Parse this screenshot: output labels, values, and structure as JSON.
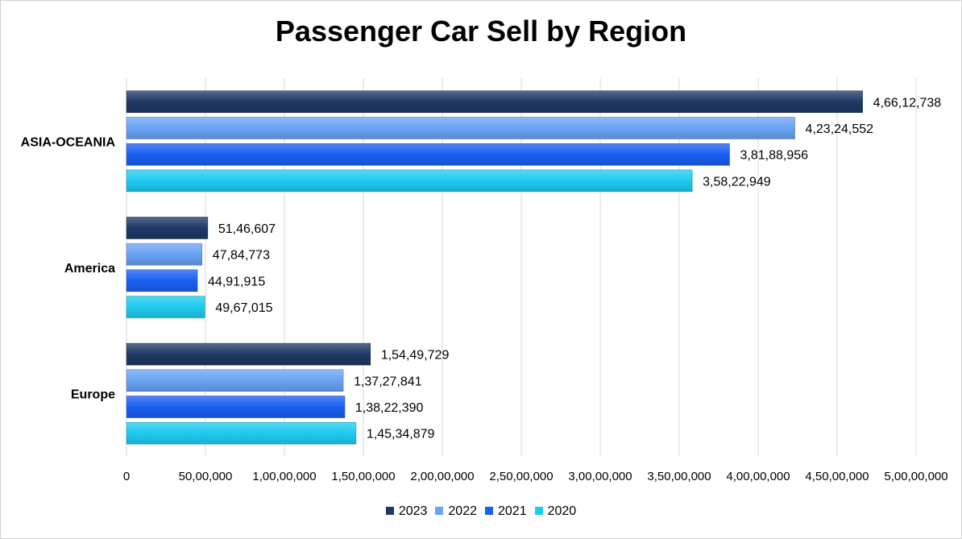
{
  "chart_data": {
    "type": "bar",
    "orientation": "horizontal",
    "title": "Passenger Car Sell by Region",
    "categories": [
      "ASIA-OCEANIA",
      "America",
      "Europe"
    ],
    "series": [
      {
        "name": "2023",
        "color": "#1f3864",
        "values": [
          46612738,
          5146607,
          15449729
        ],
        "labels": [
          "4,66,12,738",
          "51,46,607",
          "1,54,49,729"
        ]
      },
      {
        "name": "2022",
        "color": "#6aa2f5",
        "values": [
          42324552,
          4784773,
          13727841
        ],
        "labels": [
          "4,23,24,552",
          "47,84,773",
          "1,37,27,841"
        ]
      },
      {
        "name": "2021",
        "color": "#1a5ff2",
        "values": [
          38188956,
          4491915,
          13822390
        ],
        "labels": [
          "3,81,88,956",
          "44,91,915",
          "1,38,22,390"
        ]
      },
      {
        "name": "2020",
        "color": "#1ecbf0",
        "values": [
          35822949,
          4967015,
          14534879
        ],
        "labels": [
          "3,58,22,949",
          "49,67,015",
          "1,45,34,879"
        ]
      }
    ],
    "xlim": [
      0,
      50000000
    ],
    "xticks": [
      0,
      5000000,
      10000000,
      15000000,
      20000000,
      25000000,
      30000000,
      35000000,
      40000000,
      45000000,
      50000000
    ],
    "xtick_labels": [
      "0",
      "50,00,000",
      "1,00,00,000",
      "1,50,00,000",
      "2,00,00,000",
      "2,50,00,000",
      "3,00,00,000",
      "3,50,00,000",
      "4,00,00,000",
      "4,50,00,000",
      "5,00,00,000"
    ],
    "grid": true,
    "legend": "bottom",
    "legend_entries": [
      "2023",
      "2022",
      "2021",
      "2020"
    ]
  }
}
